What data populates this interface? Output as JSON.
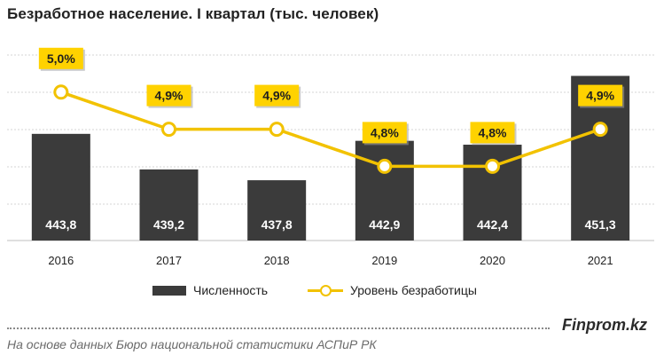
{
  "title": "Безработное население. I квартал (тыс. человек)",
  "chart_data": {
    "type": "bar+line",
    "categories": [
      "2016",
      "2017",
      "2018",
      "2019",
      "2020",
      "2021"
    ],
    "series": [
      {
        "name": "Численность",
        "type": "bar",
        "values": [
          443.8,
          439.2,
          437.8,
          442.9,
          442.4,
          451.3
        ],
        "labels": [
          "443,8",
          "439,2",
          "437,8",
          "442,9",
          "442,4",
          "451,3"
        ],
        "color": "#3b3b3b"
      },
      {
        "name": "Уровень безработицы",
        "type": "line",
        "values": [
          5.0,
          4.9,
          4.9,
          4.8,
          4.8,
          4.9
        ],
        "labels": [
          "5,0%",
          "4,9%",
          "4,9%",
          "4,8%",
          "4,8%",
          "4,9%"
        ],
        "color": "#f2c200"
      }
    ],
    "bar_axis_range": [
      430,
      454
    ],
    "line_axis_range": [
      4.6,
      5.1
    ],
    "grid": true,
    "legend_position": "bottom"
  },
  "legend": {
    "bars_label": "Численность",
    "line_label": "Уровень безработицы"
  },
  "brand": "Finprom.kz",
  "source": "На основе данных  Бюро национальной  статистики АСПиР РК"
}
